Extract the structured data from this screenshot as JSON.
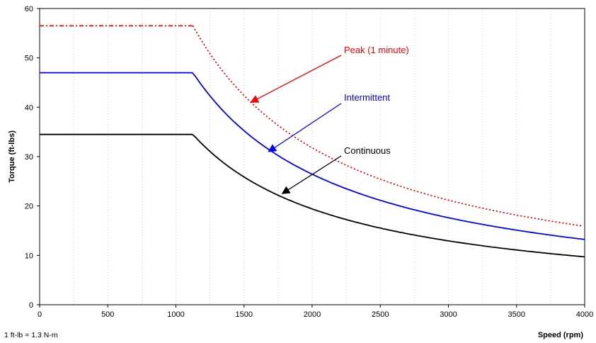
{
  "chart_data": {
    "type": "line",
    "xlabel": "Speed (rpm)",
    "ylabel": "Torque (ft-lbs)",
    "note": "1 ft-lb = 1.3 N-m",
    "xlim": [
      0,
      4000
    ],
    "ylim": [
      0,
      60
    ],
    "x_ticks": [
      "0",
      "500",
      "1000",
      "1500",
      "2000",
      "2500",
      "3000",
      "3500",
      "4000"
    ],
    "y_ticks": [
      "0",
      "10",
      "20",
      "30",
      "40",
      "50",
      "60"
    ],
    "grid": "dotted vertical",
    "series": [
      {
        "name": "Peak (1 minute)",
        "color": "#ff0000",
        "line_style": "dotted (dash-dot on flat section)",
        "x": [
          0,
          1125,
          1250,
          1500,
          1750,
          2000,
          2500,
          3000,
          3500,
          4000
        ],
        "y": [
          56.5,
          56.5,
          50.8,
          42.4,
          36.3,
          31.8,
          25.4,
          21.2,
          18.2,
          15.9
        ]
      },
      {
        "name": "Intermittent",
        "color": "#0000ff",
        "line_style": "solid",
        "x": [
          0,
          1125,
          1250,
          1500,
          1750,
          2000,
          2500,
          3000,
          3500,
          4000
        ],
        "y": [
          47.0,
          47.0,
          42.3,
          35.3,
          30.2,
          26.4,
          21.2,
          17.6,
          15.1,
          13.2
        ]
      },
      {
        "name": "Continuous",
        "color": "#000000",
        "line_style": "solid",
        "x": [
          0,
          1125,
          1250,
          1500,
          1750,
          2000,
          2500,
          3000,
          3500,
          4000
        ],
        "y": [
          34.5,
          34.5,
          31.1,
          25.9,
          22.2,
          19.4,
          15.5,
          12.9,
          11.1,
          9.7
        ]
      }
    ],
    "annotations": [
      {
        "text": "Peak (1 minute)",
        "color": "#ff0000",
        "points_to": [
          1550,
          41
        ]
      },
      {
        "text": "Intermittent",
        "color": "#0000ff",
        "points_to": [
          1680,
          31
        ]
      },
      {
        "text": "Continuous",
        "color": "#000000",
        "points_to": [
          1780,
          22.5
        ]
      }
    ]
  }
}
